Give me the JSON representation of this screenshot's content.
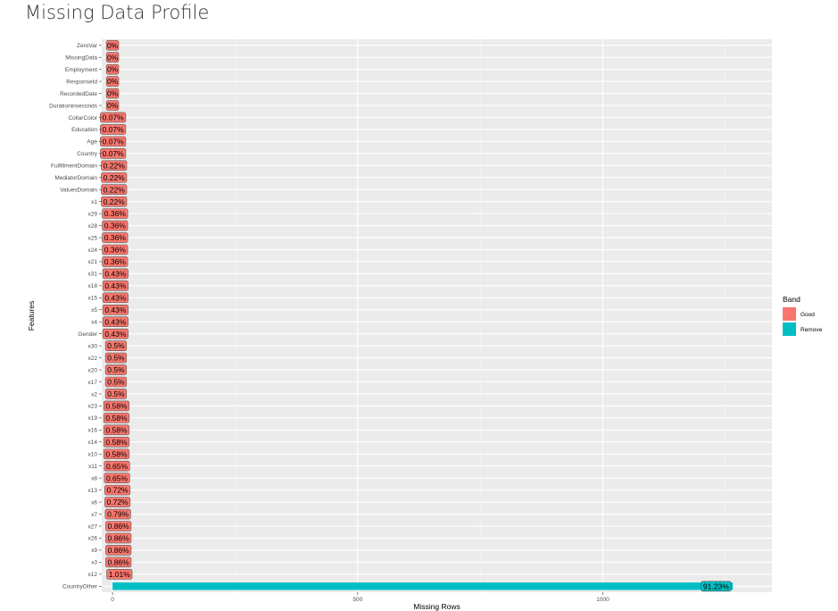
{
  "page": {
    "title": "Missing Data Profile"
  },
  "chart_data": {
    "type": "bar",
    "orientation": "horizontal",
    "xlabel": "Missing Rows",
    "ylabel": "Features",
    "xlim": [
      -22,
      1345
    ],
    "x_ticks": [
      0,
      500,
      1000
    ],
    "grid": true,
    "background": "#ebebeb",
    "legend": {
      "title": "Band",
      "position": "right",
      "entries": [
        {
          "name": "Good",
          "color": "#f8766d"
        },
        {
          "name": "Remove",
          "color": "#00bfc4"
        }
      ]
    },
    "categories": [
      "ZeroVar",
      "MissingData",
      "Employment",
      "ResponseId",
      "RecordedDate",
      "Durationinseconds",
      "CollarColor",
      "Education",
      "Age",
      "Country",
      "FulfillmentDomain",
      "MediatorDomain",
      "ValuesDomain",
      "x1",
      "x29",
      "x28",
      "x25",
      "x24",
      "x21",
      "x31",
      "x18",
      "x15",
      "x5",
      "x4",
      "Gender",
      "x30",
      "x22",
      "x20",
      "x17",
      "x2",
      "x23",
      "x19",
      "x16",
      "x14",
      "x10",
      "x11",
      "x8",
      "x13",
      "x6",
      "x7",
      "x27",
      "x26",
      "x9",
      "x3",
      "x12",
      "CountryOther"
    ],
    "values": [
      0,
      0,
      0,
      0,
      0,
      0,
      1,
      1,
      1,
      1,
      3,
      3,
      3,
      3,
      5,
      5,
      5,
      5,
      5,
      6,
      6,
      6,
      6,
      6,
      6,
      7,
      7,
      7,
      7,
      7,
      8,
      8,
      8,
      8,
      8,
      9,
      9,
      10,
      10,
      11,
      12,
      12,
      12,
      12,
      14,
      1265
    ],
    "labels": [
      "0%",
      "0%",
      "0%",
      "0%",
      "0%",
      "0%",
      "0.07%",
      "0.07%",
      "0.07%",
      "0.07%",
      "0.22%",
      "0.22%",
      "0.22%",
      "0.22%",
      "0.36%",
      "0.36%",
      "0.36%",
      "0.36%",
      "0.36%",
      "0.43%",
      "0.43%",
      "0.43%",
      "0.43%",
      "0.43%",
      "0.43%",
      "0.5%",
      "0.5%",
      "0.5%",
      "0.5%",
      "0.5%",
      "0.58%",
      "0.58%",
      "0.58%",
      "0.58%",
      "0.58%",
      "0.65%",
      "0.65%",
      "0.72%",
      "0.72%",
      "0.79%",
      "0.86%",
      "0.86%",
      "0.86%",
      "0.86%",
      "1.01%",
      "91.23%"
    ],
    "bands": [
      "Good",
      "Good",
      "Good",
      "Good",
      "Good",
      "Good",
      "Good",
      "Good",
      "Good",
      "Good",
      "Good",
      "Good",
      "Good",
      "Good",
      "Good",
      "Good",
      "Good",
      "Good",
      "Good",
      "Good",
      "Good",
      "Good",
      "Good",
      "Good",
      "Good",
      "Good",
      "Good",
      "Good",
      "Good",
      "Good",
      "Good",
      "Good",
      "Good",
      "Good",
      "Good",
      "Good",
      "Good",
      "Good",
      "Good",
      "Good",
      "Good",
      "Good",
      "Good",
      "Good",
      "Good",
      "Remove"
    ]
  }
}
